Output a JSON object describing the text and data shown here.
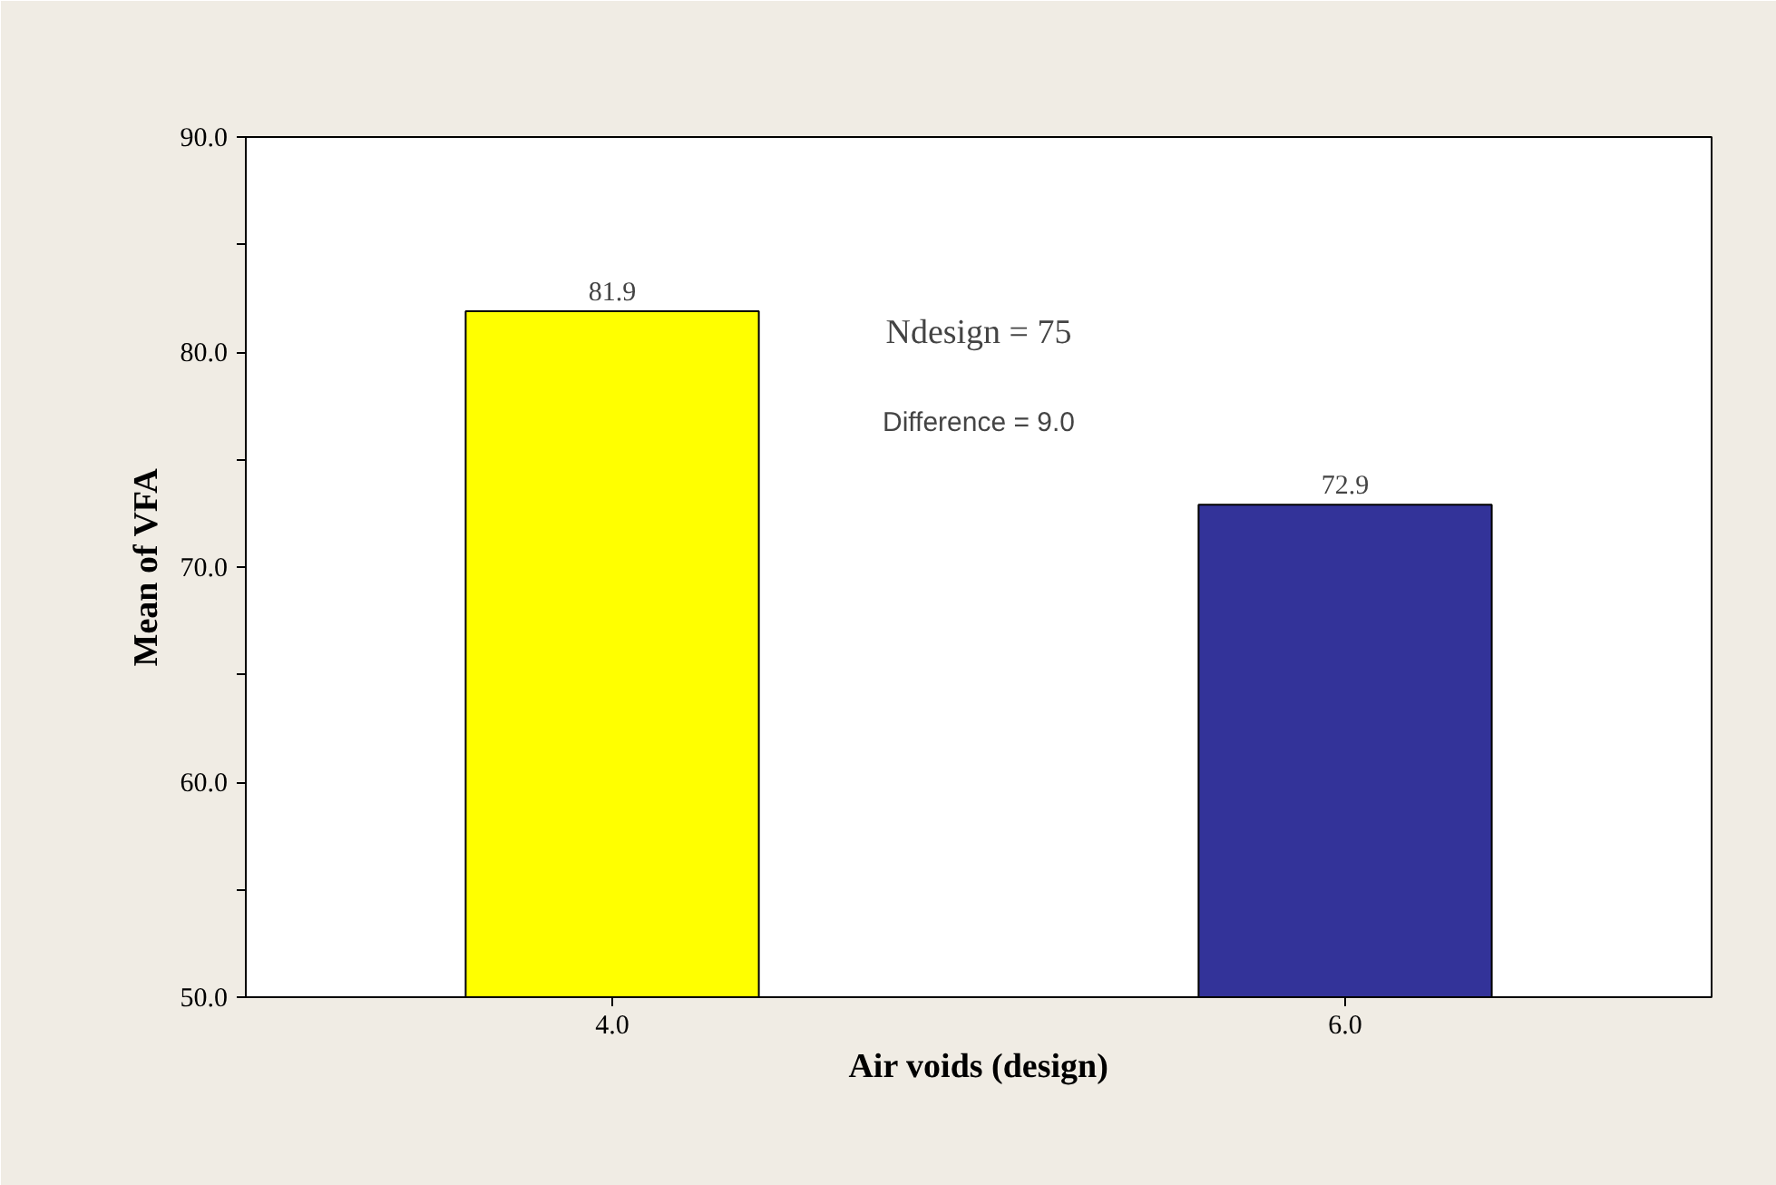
{
  "chart_data": {
    "type": "bar",
    "xlabel": "Air voids (design)",
    "ylabel": "Mean of VFA",
    "categories": [
      "4.0",
      "6.0"
    ],
    "values": [
      81.9,
      72.9
    ],
    "colors": [
      "#ffff00",
      "#333399"
    ],
    "data_labels": true,
    "ylim": [
      50,
      90
    ],
    "yticks": [
      {
        "value": 50,
        "label": "50.0"
      },
      {
        "value": 55,
        "label": null
      },
      {
        "value": 60,
        "label": "60.0"
      },
      {
        "value": 65,
        "label": null
      },
      {
        "value": 70,
        "label": "70.0"
      },
      {
        "value": 75,
        "label": null
      },
      {
        "value": 80,
        "label": "80.0"
      },
      {
        "value": 85,
        "label": null
      },
      {
        "value": 90,
        "label": "90.0"
      }
    ],
    "annotations": [
      "Ndesign = 75",
      "Difference = 9.0"
    ],
    "grid": false
  }
}
